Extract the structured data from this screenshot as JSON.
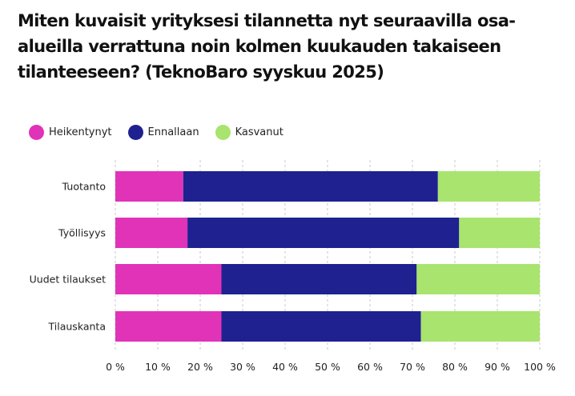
{
  "chart_data": {
    "type": "bar",
    "orientation": "horizontal",
    "stacked": true,
    "title": "Miten kuvaisit yrityksesi tilannetta nyt seuraavilla osa-alueilla verrattuna noin kolmen kuukauden takaiseen tilanteeseen? (TeknoBaro syyskuu 2025)",
    "categories": [
      "Tuotanto",
      "Työllisyys",
      "Uudet tilaukset",
      "Tilauskanta"
    ],
    "series": [
      {
        "name": "Heikentynyt",
        "color": "#e033b8",
        "values": [
          16,
          17,
          25,
          25
        ]
      },
      {
        "name": "Ennallaan",
        "color": "#1f2190",
        "values": [
          60,
          64,
          46,
          47
        ]
      },
      {
        "name": "Kasvanut",
        "color": "#a8e46e",
        "values": [
          24,
          19,
          29,
          28
        ]
      }
    ],
    "xlim": [
      0,
      100
    ],
    "xticks": [
      0,
      10,
      20,
      30,
      40,
      50,
      60,
      70,
      80,
      90,
      100
    ],
    "xtick_labels": [
      "0 %",
      "10 %",
      "20 %",
      "30 %",
      "40 %",
      "50 %",
      "60 %",
      "70 %",
      "80 %",
      "90 %",
      "100 %"
    ],
    "grid": true,
    "legend_position": "top-left",
    "xlabel": "",
    "ylabel": ""
  }
}
